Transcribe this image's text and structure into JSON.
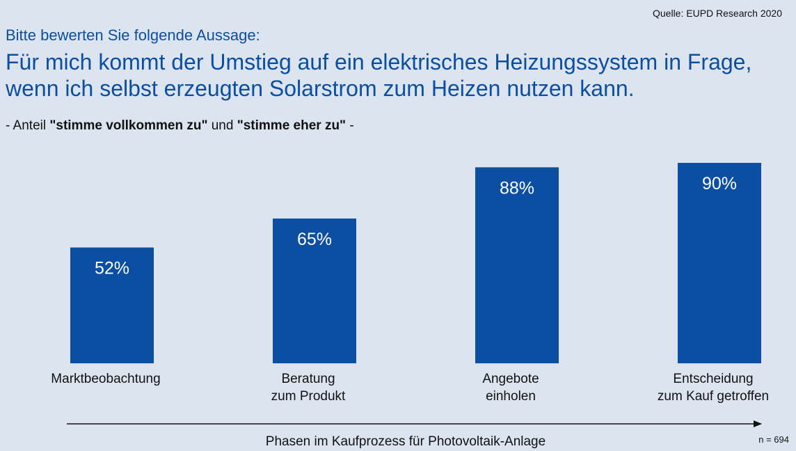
{
  "header": {
    "source": "Quelle: EUPD Research 2020",
    "question_intro": "Bitte bewerten Sie folgende Aussage:",
    "statement": "Für mich kommt der Umstieg auf ein elektrisches Heizungssystem in Frage, wenn ich selbst erzeugten Solarstrom zum Heizen nutzen kann.",
    "note_prefix": "- Anteil ",
    "note_bold_1": "\"stimme vollkommen zu\"",
    "note_mid": " und ",
    "note_bold_2": "\"stimme eher zu\"",
    "note_suffix": " -"
  },
  "colors": {
    "bar": "#0b4ea2",
    "background": "#dce5ef",
    "title": "#0b4ea2"
  },
  "chart_data": {
    "type": "bar",
    "categories": [
      [
        "Marktbeobachtung"
      ],
      [
        "Beratung",
        "zum Produkt"
      ],
      [
        "Angebote",
        "einholen"
      ],
      [
        "Entscheidung",
        "zum Kauf getroffen"
      ]
    ],
    "values": [
      52,
      65,
      88,
      90
    ],
    "value_labels": [
      "52%",
      "65%",
      "88%",
      "90%"
    ],
    "xlabel": "Phasen im Kaufprozess für Photovoltaik-Anlage",
    "ylim": [
      0,
      100
    ],
    "grid": false,
    "sample_size": "n = 694"
  }
}
